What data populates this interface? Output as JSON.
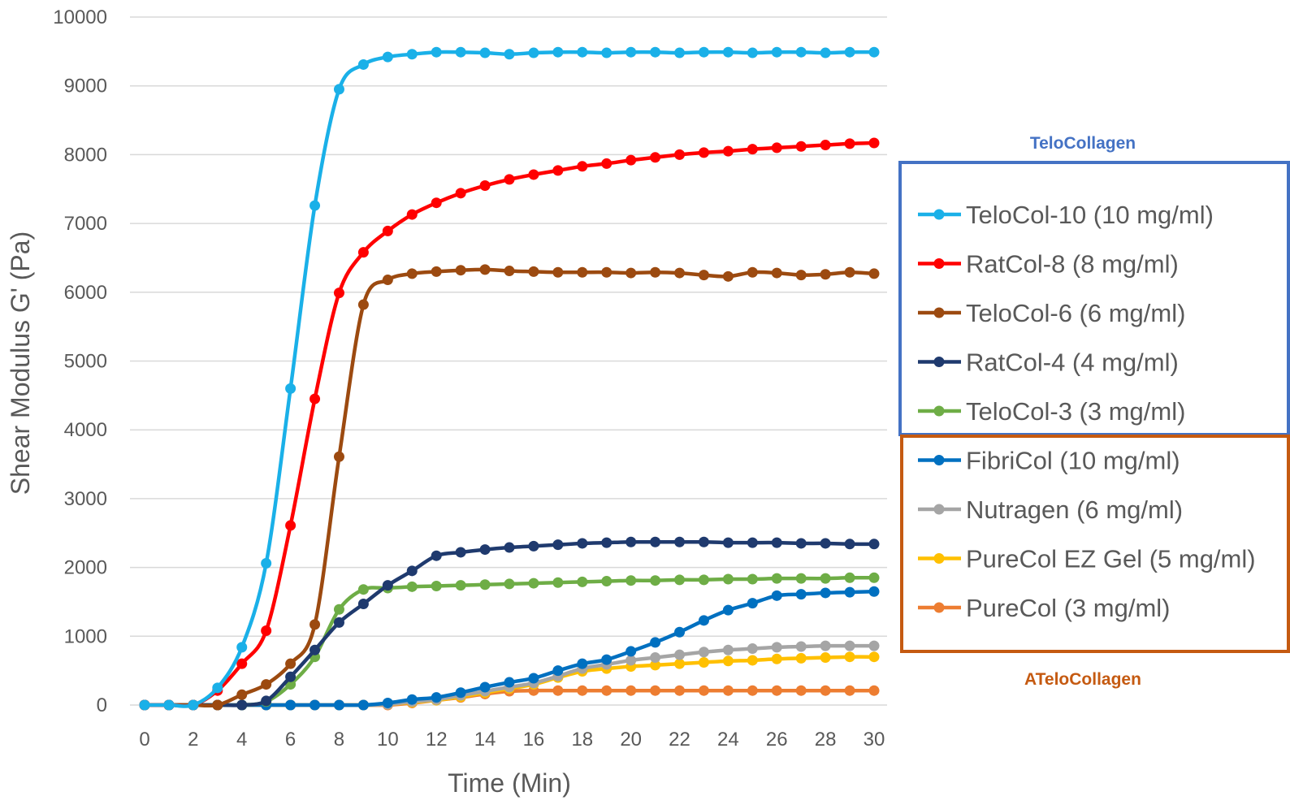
{
  "chart_data": {
    "type": "line",
    "title": "",
    "xlabel": "Time (Min)",
    "ylabel": "Shear Modulus G' (Pa)",
    "xlim": [
      0,
      30
    ],
    "ylim": [
      0,
      10000
    ],
    "x_ticks": [
      "0",
      "2",
      "4",
      "6",
      "8",
      "10",
      "12",
      "14",
      "16",
      "18",
      "20",
      "22",
      "24",
      "26",
      "28",
      "30"
    ],
    "y_ticks": [
      "0",
      "1000",
      "2000",
      "3000",
      "4000",
      "5000",
      "6000",
      "7000",
      "8000",
      "9000",
      "10000"
    ],
    "grid": "horizontal",
    "legend_position": "right",
    "groups": [
      {
        "title": "TeloCollagen",
        "color": "#4472C4",
        "series_range": [
          0,
          4
        ]
      },
      {
        "title": "ATeloCollagen",
        "color": "#C55A11",
        "series_range": [
          5,
          8
        ]
      }
    ],
    "x": [
      0,
      1,
      2,
      3,
      4,
      5,
      6,
      7,
      8,
      9,
      10,
      11,
      12,
      13,
      14,
      15,
      16,
      17,
      18,
      19,
      20,
      21,
      22,
      23,
      24,
      25,
      26,
      27,
      28,
      29,
      30
    ],
    "series": [
      {
        "name": "TeloCol-10 (10 mg/ml)",
        "color": "#1AB0E8",
        "values": [
          0,
          0,
          0,
          250,
          840,
          2060,
          4600,
          7260,
          8950,
          9310,
          9420,
          9460,
          9490,
          9490,
          9480,
          9460,
          9480,
          9490,
          9490,
          9480,
          9490,
          9490,
          9480,
          9490,
          9490,
          9480,
          9490,
          9490,
          9480,
          9490,
          9490
        ]
      },
      {
        "name": "RatCol-8 (8 mg/ml)",
        "color": "#FF0000",
        "values": [
          0,
          0,
          0,
          210,
          600,
          1080,
          2610,
          4450,
          5990,
          6580,
          6890,
          7130,
          7300,
          7440,
          7550,
          7640,
          7710,
          7770,
          7830,
          7870,
          7920,
          7960,
          8000,
          8030,
          8050,
          8080,
          8100,
          8120,
          8140,
          8160,
          8170
        ]
      },
      {
        "name": "TeloCol-6 (6 mg/ml)",
        "color": "#9C4A10",
        "values": [
          0,
          0,
          0,
          0,
          150,
          300,
          600,
          1170,
          3610,
          5820,
          6180,
          6270,
          6300,
          6320,
          6330,
          6310,
          6300,
          6290,
          6290,
          6290,
          6280,
          6290,
          6280,
          6250,
          6230,
          6290,
          6280,
          6250,
          6260,
          6290,
          6270
        ]
      },
      {
        "name": "RatCol-4 (4 mg/ml)",
        "color": "#1F3A6E",
        "values": [
          0,
          0,
          0,
          0,
          0,
          60,
          410,
          800,
          1200,
          1470,
          1740,
          1950,
          2170,
          2220,
          2260,
          2290,
          2310,
          2330,
          2350,
          2360,
          2370,
          2370,
          2370,
          2370,
          2360,
          2360,
          2360,
          2350,
          2350,
          2340,
          2340
        ]
      },
      {
        "name": "TeloCol-3 (3 mg/ml)",
        "color": "#6EAD46",
        "values": [
          0,
          0,
          0,
          0,
          0,
          50,
          300,
          700,
          1390,
          1680,
          1700,
          1720,
          1730,
          1740,
          1750,
          1760,
          1770,
          1780,
          1790,
          1800,
          1810,
          1810,
          1820,
          1820,
          1830,
          1830,
          1840,
          1840,
          1840,
          1850,
          1850
        ]
      },
      {
        "name": "FibriCol (10 mg/ml)",
        "color": "#0070C0",
        "values": [
          0,
          0,
          0,
          0,
          0,
          0,
          0,
          0,
          0,
          0,
          30,
          80,
          110,
          180,
          260,
          330,
          390,
          500,
          600,
          660,
          780,
          910,
          1060,
          1230,
          1380,
          1480,
          1590,
          1610,
          1630,
          1640,
          1650
        ]
      },
      {
        "name": "Nutragen (6 mg/ml)",
        "color": "#A5A5A5",
        "values": [
          0,
          0,
          0,
          0,
          0,
          0,
          0,
          0,
          0,
          0,
          10,
          50,
          80,
          140,
          200,
          260,
          320,
          420,
          530,
          590,
          650,
          690,
          730,
          770,
          800,
          820,
          840,
          850,
          860,
          860,
          860
        ]
      },
      {
        "name": "PureCol EZ Gel (5 mg/ml)",
        "color": "#FFC000",
        "values": [
          0,
          0,
          0,
          0,
          0,
          0,
          0,
          0,
          0,
          0,
          10,
          40,
          70,
          120,
          180,
          240,
          300,
          400,
          490,
          530,
          560,
          580,
          600,
          620,
          640,
          650,
          670,
          680,
          690,
          700,
          700
        ]
      },
      {
        "name": "PureCol (3 mg/ml)",
        "color": "#ED7D31",
        "values": [
          0,
          0,
          0,
          0,
          0,
          0,
          0,
          0,
          0,
          0,
          0,
          30,
          70,
          110,
          160,
          200,
          210,
          210,
          210,
          210,
          210,
          210,
          210,
          210,
          210,
          210,
          210,
          210,
          210,
          210,
          210
        ]
      }
    ]
  }
}
